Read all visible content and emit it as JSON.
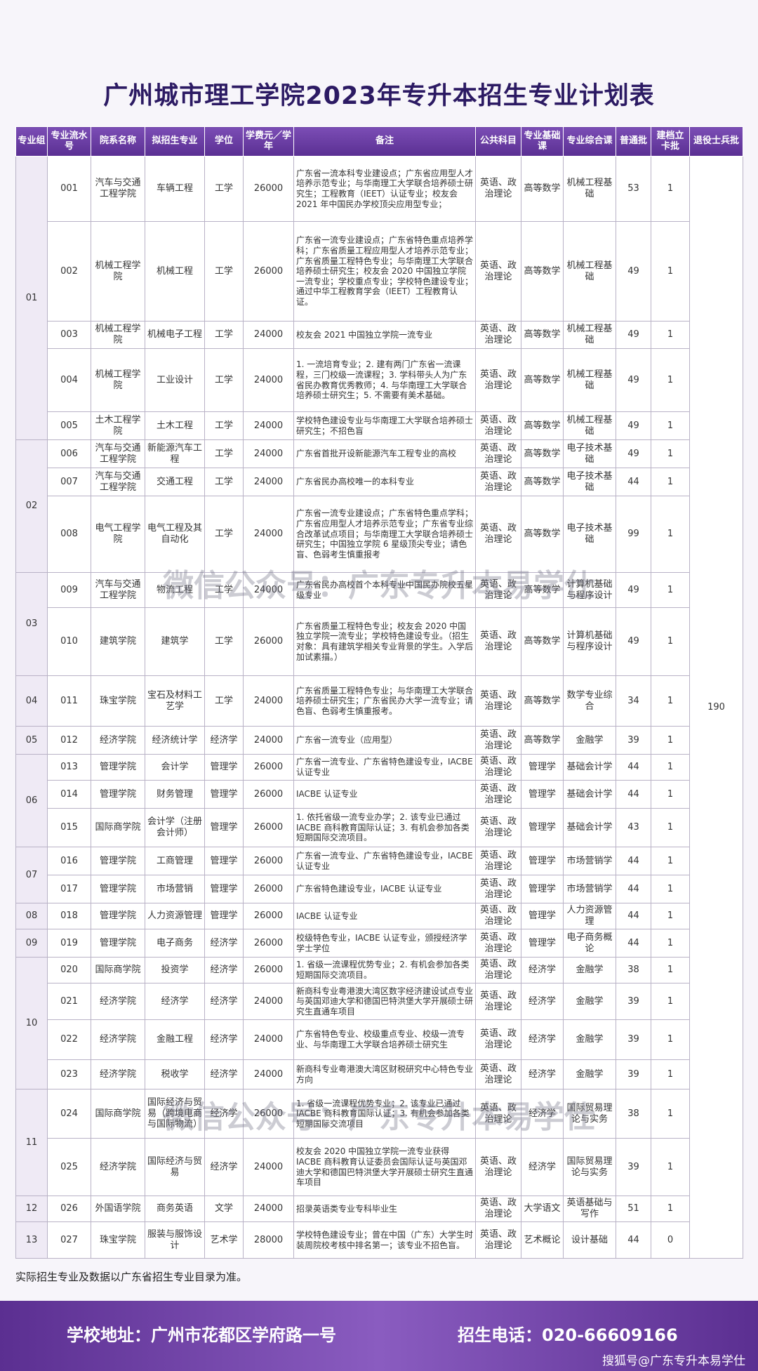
{
  "header": {
    "title": "广州城市理工学院2023年专升本招生专业计划表"
  },
  "table": {
    "columns": [
      "专业组",
      "专业流水号",
      "院系名称",
      "拟招生专业",
      "学位",
      "学费元／学年",
      "备注",
      "公共科目",
      "专业基础课",
      "专业综合课",
      "普通批",
      "建档立卡批",
      "退役士兵批"
    ],
    "veteran": "190",
    "groups": [
      {
        "group": "01",
        "rows": [
          [
            "001",
            "汽车与交通工程学院",
            "车辆工程",
            "工学",
            "26000",
            "广东省一流本科专业建设点；广东省应用型人才培养示范专业；与华南理工大学联合培养硕士研究生；工程教育（IEET）认证专业；校友会 2021 年中国民办学校顶尖应用型专业；",
            "英语、政治理论",
            "高等数学",
            "机械工程基础",
            "53",
            "1"
          ],
          [
            "002",
            "机械工程学院",
            "机械工程",
            "工学",
            "26000",
            "广东省一流专业建设点；广东省特色重点培养学科；广东省质量工程应用型人才培养示范专业；广东省质量工程特色专业；与华南理工大学联合培养硕士研究生；校友会 2020 中国独立学院一流专业；学校重点专业；学校特色建设专业；通过中华工程教育学会（IEET）工程教育认证。",
            "英语、政治理论",
            "高等数学",
            "机械工程基础",
            "49",
            "1"
          ],
          [
            "003",
            "机械工程学院",
            "机械电子工程",
            "工学",
            "24000",
            "校友会 2021 中国独立学院一流专业",
            "英语、政治理论",
            "高等数学",
            "机械工程基础",
            "49",
            "1"
          ],
          [
            "004",
            "机械工程学院",
            "工业设计",
            "工学",
            "24000",
            "1. 一流培育专业；2. 建有两门广东省一流课程，三门校级一流课程；3. 学科带头人为广东省民办教育优秀教师；4. 与华南理工大学联合培养硕士研究生；5. 不需要有美术基础。",
            "英语、政治理论",
            "高等数学",
            "机械工程基础",
            "49",
            "1"
          ],
          [
            "005",
            "土木工程学院",
            "土木工程",
            "工学",
            "24000",
            "学校特色建设专业与华南理工大学联合培养硕士研究生；不招色盲",
            "英语、政治理论",
            "高等数学",
            "机械工程基础",
            "49",
            "1"
          ]
        ]
      },
      {
        "group": "02",
        "rows": [
          [
            "006",
            "汽车与交通工程学院",
            "新能源汽车工程",
            "工学",
            "24000",
            "广东省首批开设新能源汽车工程专业的高校",
            "英语、政治理论",
            "高等数学",
            "电子技术基础",
            "49",
            "1"
          ],
          [
            "007",
            "汽车与交通工程学院",
            "交通工程",
            "工学",
            "24000",
            "广东省民办高校唯一的本科专业",
            "英语、政治理论",
            "高等数学",
            "电子技术基础",
            "44",
            "1"
          ],
          [
            "008",
            "电气工程学院",
            "电气工程及其自动化",
            "工学",
            "24000",
            "广东省一流专业建设点；广东省特色重点学科；广东省应用型人才培养示范专业；广东省专业综合改革试点项目；与华南理工大学联合培养硕士研究生；中国独立学院 6 星级顶尖专业；请色盲、色弱考生慎重报考",
            "英语、政治理论",
            "高等数学",
            "电子技术基础",
            "99",
            "1"
          ]
        ]
      },
      {
        "group": "03",
        "rows": [
          [
            "009",
            "汽车与交通工程学院",
            "物流工程",
            "工学",
            "24000",
            "广东省民办高校首个本科专业中国民办院校五星级专业",
            "英语、政治理论",
            "高等数学",
            "计算机基础与程序设计",
            "49",
            "1"
          ],
          [
            "010",
            "建筑学院",
            "建筑学",
            "工学",
            "26000",
            "广东省质量工程特色专业；校友会 2020 中国独立学院一流专业；学校特色建设专业。（招生对象：具有建筑学相关专业背景的学生。入学后加试素描。）",
            "英语、政治理论",
            "高等数学",
            "计算机基础与程序设计",
            "49",
            "1"
          ]
        ]
      },
      {
        "group": "04",
        "rows": [
          [
            "011",
            "珠宝学院",
            "宝石及材料工艺学",
            "工学",
            "24000",
            "广东省质量工程特色专业；与华南理工大学联合培养硕士研究生；广东省民办大学一流专业；请色盲、色弱考生慎重报考。",
            "英语、政治理论",
            "高等数学",
            "数学专业综合",
            "34",
            "1"
          ]
        ]
      },
      {
        "group": "05",
        "rows": [
          [
            "012",
            "经济学院",
            "经济统计学",
            "经济学",
            "24000",
            "广东省一流专业（应用型）",
            "英语、政治理论",
            "高等数学",
            "金融学",
            "39",
            "1"
          ]
        ]
      },
      {
        "group": "06",
        "rows": [
          [
            "013",
            "管理学院",
            "会计学",
            "管理学",
            "26000",
            "广东省一流专业、广东省特色建设专业，IACBE 认证专业",
            "英语、政治理论",
            "管理学",
            "基础会计学",
            "44",
            "1"
          ],
          [
            "014",
            "管理学院",
            "财务管理",
            "管理学",
            "26000",
            "IACBE 认证专业",
            "英语、政治理论",
            "管理学",
            "基础会计学",
            "44",
            "1"
          ],
          [
            "015",
            "国际商学院",
            "会计学（注册会计师）",
            "管理学",
            "26000",
            "1. 依托省级一流专业办学；2. 该专业已通过 IACBE 商科教育国际认证；3. 有机会参加各类短期国际交流项目。",
            "英语、政治理论",
            "管理学",
            "基础会计学",
            "43",
            "1"
          ]
        ]
      },
      {
        "group": "07",
        "rows": [
          [
            "016",
            "管理学院",
            "工商管理",
            "管理学",
            "26000",
            "广东省一流专业、广东省特色建设专业，IACBE 认证专业",
            "英语、政治理论",
            "管理学",
            "市场营销学",
            "44",
            "1"
          ],
          [
            "017",
            "管理学院",
            "市场营销",
            "管理学",
            "26000",
            "广东省特色建设专业，IACBE 认证专业",
            "英语、政治理论",
            "管理学",
            "市场营销学",
            "44",
            "1"
          ]
        ]
      },
      {
        "group": "08",
        "rows": [
          [
            "018",
            "管理学院",
            "人力资源管理",
            "管理学",
            "26000",
            "IACBE 认证专业",
            "英语、政治理论",
            "管理学",
            "人力资源管理",
            "44",
            "1"
          ]
        ]
      },
      {
        "group": "09",
        "rows": [
          [
            "019",
            "管理学院",
            "电子商务",
            "经济学",
            "26000",
            "校级特色专业，IACBE 认证专业，颁授经济学学士学位",
            "英语、政治理论",
            "管理学",
            "电子商务概论",
            "44",
            "1"
          ]
        ]
      },
      {
        "group": "10",
        "rows": [
          [
            "020",
            "国际商学院",
            "投资学",
            "经济学",
            "26000",
            "1. 省级一流课程优势专业；2. 有机会参加各类短期国际交流项目。",
            "英语、政治理论",
            "经济学",
            "金融学",
            "38",
            "1"
          ],
          [
            "021",
            "经济学院",
            "经济学",
            "经济学",
            "24000",
            "新商科专业粤港澳大湾区数字经济建设试点专业与英国邓迪大学和德国巴特洪堡大学开展硕士研究生直通车项目",
            "英语、政治理论",
            "经济学",
            "金融学",
            "39",
            "1"
          ],
          [
            "022",
            "经济学院",
            "金融工程",
            "经济学",
            "24000",
            "广东省特色专业、校级重点专业、校级一流专业、与华南理工大学联合培养硕士研究生",
            "英语、政治理论",
            "经济学",
            "金融学",
            "39",
            "1"
          ],
          [
            "023",
            "经济学院",
            "税收学",
            "经济学",
            "24000",
            "新商科专业粤港澳大湾区财税研究中心特色专业方向",
            "英语、政治理论",
            "经济学",
            "金融学",
            "39",
            "1"
          ]
        ]
      },
      {
        "group": "11",
        "rows": [
          [
            "024",
            "国际商学院",
            "国际经济与贸易（跨境电商与国际物流）",
            "经济学",
            "26000",
            "1. 省级一流课程优势专业；2. 该专业已通过 IACBE 商科教育国际认证；3. 有机会参加各类短期国际交流项目",
            "英语、政治理论",
            "经济学",
            "国际贸易理论与实务",
            "38",
            "1"
          ],
          [
            "025",
            "经济学院",
            "国际经济与贸易",
            "经济学",
            "24000",
            "校友会 2020 中国独立学院一流专业获得 IACBE 商科教育认证委员会国际认证与英国邓迪大学和德国巴特洪堡大学开展硕士研究生直通车项目",
            "英语、政治理论",
            "经济学",
            "国际贸易理论与实务",
            "39",
            "1"
          ]
        ]
      },
      {
        "group": "12",
        "rows": [
          [
            "026",
            "外国语学院",
            "商务英语",
            "文学",
            "24000",
            "招录英语类专业专科毕业生",
            "英语、政治理论",
            "大学语文",
            "英语基础与写作",
            "51",
            "1"
          ]
        ]
      },
      {
        "group": "13",
        "rows": [
          [
            "027",
            "珠宝学院",
            "服装与服饰设计",
            "艺术学",
            "28000",
            "学校特色建设专业；曾在中国（广东）大学生时装周院校考核中排名第一；该专业不招色盲。",
            "英语、政治理论",
            "艺术概论",
            "设计基础",
            "44",
            "0"
          ]
        ]
      }
    ]
  },
  "footnote": "实际招生专业及数据以广东省招生专业目录为准。",
  "watermark": "微信公众号：广东专升本易学仕",
  "footer": {
    "address": "学校地址：广州市花都区学府路一号",
    "phone": "招生电话：020-66609166",
    "source": "搜狐号@广东专升本易学仕"
  }
}
